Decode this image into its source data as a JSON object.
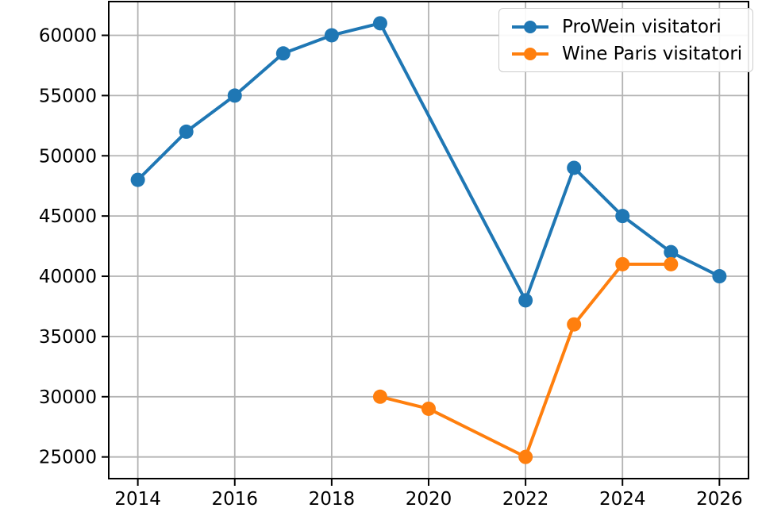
{
  "chart_data": {
    "type": "line",
    "title": "",
    "xlabel": "",
    "ylabel": "",
    "grid": true,
    "legend_position": "upper right",
    "xlim": [
      2013.4,
      2026.6
    ],
    "ylim": [
      23200,
      62800
    ],
    "x_ticks": [
      2014,
      2016,
      2018,
      2020,
      2022,
      2024,
      2026
    ],
    "y_ticks": [
      25000,
      30000,
      35000,
      40000,
      45000,
      50000,
      55000,
      60000
    ],
    "series": [
      {
        "name": "ProWein visitatori",
        "color": "#1f77b4",
        "x": [
          2014,
          2015,
          2016,
          2017,
          2018,
          2019,
          2022,
          2023,
          2024,
          2025,
          2026
        ],
        "y": [
          48000,
          52000,
          55000,
          58500,
          60000,
          61000,
          38000,
          49000,
          45000,
          42000,
          40000
        ]
      },
      {
        "name": "Wine Paris visitatori",
        "color": "#ff7f0e",
        "x": [
          2019,
          2020,
          2022,
          2023,
          2024,
          2025
        ],
        "y": [
          30000,
          29000,
          25000,
          36000,
          41000,
          41000
        ]
      }
    ],
    "style": {
      "grid_color": "#b3b3b3",
      "spine_color": "#000000",
      "tick_color": "#000000",
      "background": "#ffffff",
      "line_width": 4,
      "marker_radius": 9
    }
  }
}
